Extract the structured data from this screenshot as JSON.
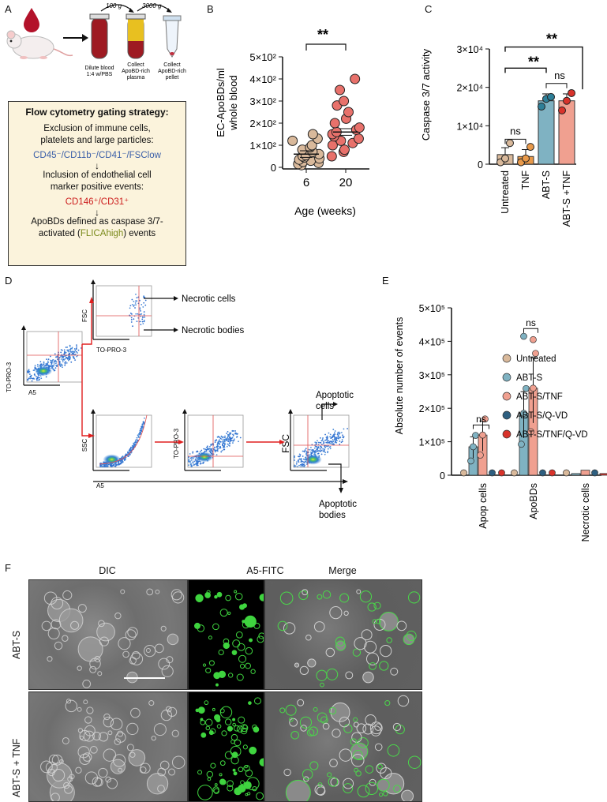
{
  "panels": {
    "a": "A",
    "b": "B",
    "c": "C",
    "d": "D",
    "e": "E",
    "f": "F"
  },
  "panel_a": {
    "speed1": "100 g",
    "speed2": "3000 g",
    "step1": [
      "Dilute blood",
      "1:4 w/PBS"
    ],
    "step2": [
      "Collect",
      "ApoBD-rich",
      "plasma"
    ],
    "step3": [
      "Collect",
      "ApoBD-rich",
      "pellet"
    ],
    "gating": {
      "title": "Flow cytometry gating strategy:",
      "line1": "Exclusion of immune cells,",
      "line2": "platelets and large particles:",
      "markers1": "CD45⁻/CD11b⁻/CD41⁻/FSClow",
      "line3": "Inclusion of endothelial cell",
      "line4": "marker positive events:",
      "markers2": "CD146⁺/CD31⁺",
      "line5": "ApoBDs defined as caspase 3/7-",
      "line6_pre": "activated (",
      "line6_mid": "FLICAhigh",
      "line6_post": ") events"
    }
  },
  "chart_data": [
    {
      "type": "scatter",
      "panel": "B",
      "ylabel": "EC-ApoBDs/ml whole blood",
      "xlabel": "Age (weeks)",
      "categories": [
        "6",
        "20"
      ],
      "ytick_labels": [
        "0",
        "1×10²",
        "2×10²",
        "3×10²",
        "4×10²",
        "5×10²"
      ],
      "ylim": [
        0,
        500
      ],
      "significance": "**",
      "series": [
        {
          "values": [
            10,
            15,
            20,
            25,
            30,
            35,
            40,
            45,
            50,
            55,
            60,
            70,
            80,
            90,
            100,
            120,
            130,
            150
          ],
          "mean": 60,
          "color": "#d9b99b"
        },
        {
          "values": [
            50,
            70,
            80,
            100,
            110,
            120,
            130,
            140,
            150,
            160,
            170,
            180,
            200,
            220,
            250,
            280,
            300,
            350,
            400
          ],
          "mean": 160,
          "color": "#e8716b"
        }
      ]
    },
    {
      "type": "bar",
      "panel": "C",
      "ylabel": "Caspase 3/7 activity",
      "categories": [
        "Untreated",
        "TNF",
        "ABT-S",
        "ABT-S +TNF"
      ],
      "ytick_labels": [
        "0",
        "1×10⁴",
        "2×10⁴",
        "3×10⁴"
      ],
      "ylim": [
        0,
        30000
      ],
      "values": [
        2500,
        2000,
        16500,
        16500
      ],
      "points": [
        [
          500,
          1500,
          5500
        ],
        [
          500,
          1500,
          4500
        ],
        [
          15000,
          17000,
          17500
        ],
        [
          14000,
          16500,
          18500
        ]
      ],
      "colors": [
        "#d9b99b",
        "#e8994a",
        "#7fb2c2",
        "#f0a090"
      ],
      "dot_colors": [
        "#d9b99b",
        "#e8994a",
        "#2e7f98",
        "#d8332b"
      ],
      "annotations": [
        "ns",
        "ns",
        "**",
        "**"
      ]
    },
    {
      "type": "bar",
      "panel": "E",
      "ylabel": "Absolute number of events",
      "categories": [
        "Apop cells",
        "ApoBDs",
        "Necrotic cells"
      ],
      "ytick_labels": [
        "0",
        "1×10⁵",
        "2×10⁵",
        "3×10⁵",
        "4×10⁵",
        "5×10⁵"
      ],
      "ylim": [
        0,
        500000
      ],
      "legend": [
        "Untreated",
        "ABT-S",
        "ABT-S/TNF",
        "ABT-S/Q-VD",
        "ABT-S/TNF/Q-VD"
      ],
      "series": [
        {
          "name": "Untreated",
          "values": [
            0,
            0,
            0
          ],
          "color": "#d9b99b"
        },
        {
          "name": "ABT-S",
          "values": [
            85000,
            185000,
            5000
          ],
          "color": "#7fb2c2"
        },
        {
          "name": "ABT-S/TNF",
          "values": [
            120000,
            260000,
            15000
          ],
          "color": "#f0a090"
        },
        {
          "name": "ABT-S/Q-VD",
          "values": [
            0,
            0,
            0
          ],
          "color": "#2e5f80"
        },
        {
          "name": "ABT-S/TNF/Q-VD",
          "values": [
            0,
            0,
            5000
          ],
          "color": "#d8332b"
        }
      ],
      "annotations": [
        "ns",
        "ns"
      ]
    }
  ],
  "panel_d": {
    "necrotic_cells": "Necrotic cells",
    "necrotic_bodies": "Necrotic bodies",
    "apoptotic_cells": [
      "Apoptotic",
      "cells"
    ],
    "apoptotic_bodies": [
      "Apoptotic",
      "bodies"
    ],
    "fsc": "FSC",
    "ssc": "SSC",
    "topro": "TO-PRO-3",
    "a5": "A5"
  },
  "panel_f": {
    "columns": [
      "DIC",
      "A5-FITC",
      "Merge"
    ],
    "rows": [
      "ABT-S",
      "ABT-S + TNF"
    ]
  }
}
